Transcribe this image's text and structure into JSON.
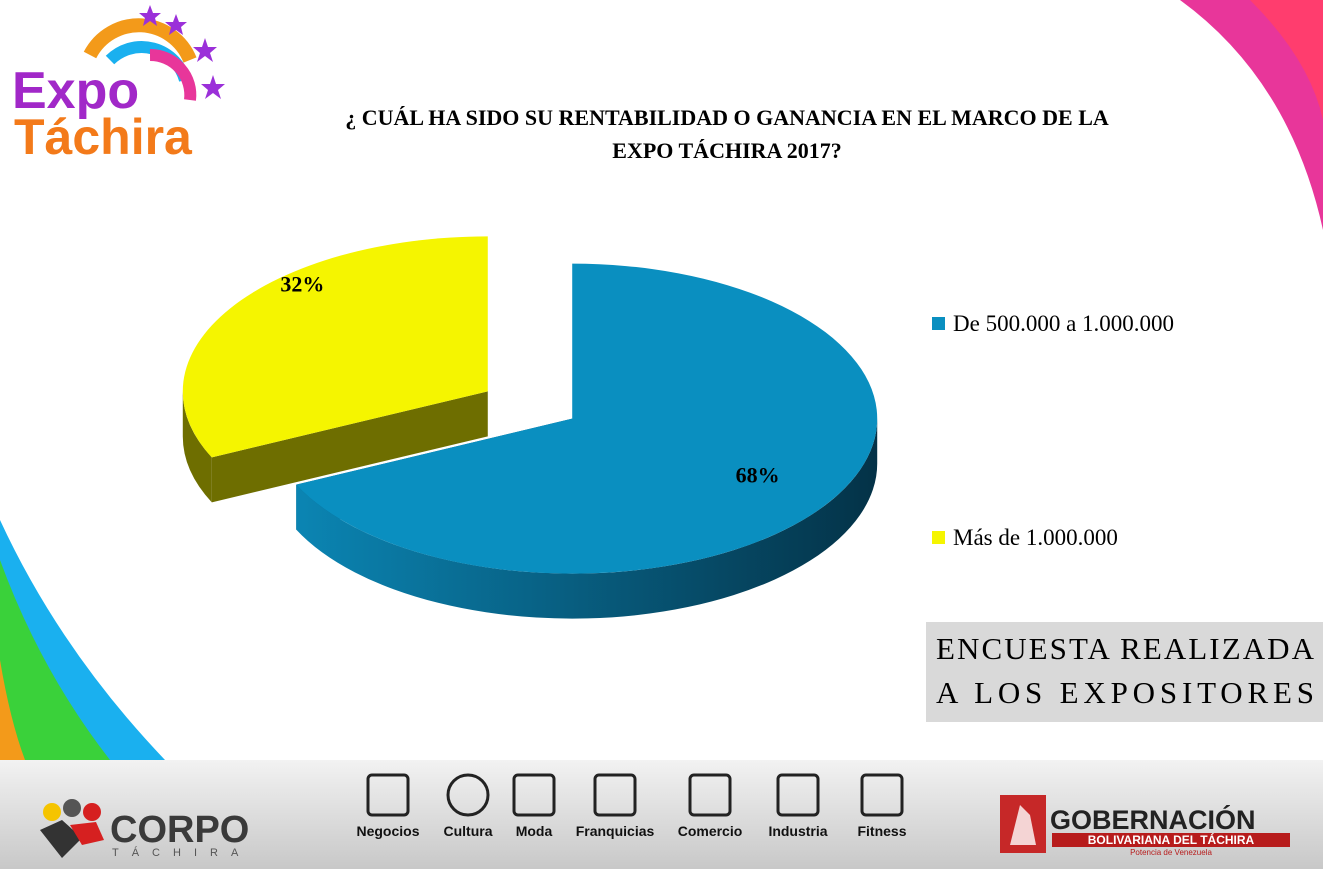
{
  "logo": {
    "line1": "Expo",
    "line2": "Táchira"
  },
  "chart_data": {
    "type": "pie",
    "title": [
      "¿ CUÁL HA SIDO SU RENTABILIDAD O GANANCIA EN EL MARCO DE LA",
      "EXPO TÁCHIRA 2017?"
    ],
    "categories": [
      "De 500.000 a 1.000.000",
      "Más de 1.000.000"
    ],
    "values": [
      68,
      32
    ],
    "value_labels": [
      "68%",
      "32%"
    ],
    "colors": [
      "#0a8fc0",
      "#f5f500"
    ],
    "side_colors": [
      "#075f82",
      "#6e6e00"
    ],
    "legend": "right"
  },
  "note": [
    "ENCUESTA REALIZADA",
    "A LOS EXPOSITORES"
  ],
  "footer": {
    "corpo": "CORPO",
    "corpo_sub": "TÁCHIRA",
    "icons": [
      "Negocios",
      "Cultura",
      "Moda",
      "Franquicias",
      "Comercio",
      "Industria",
      "Fitness"
    ],
    "gob": "GOBERNACIÓN",
    "gob_sub": "BOLIVARIANA DEL TÁCHIRA",
    "gob_tag": "Potencia de Venezuela"
  }
}
